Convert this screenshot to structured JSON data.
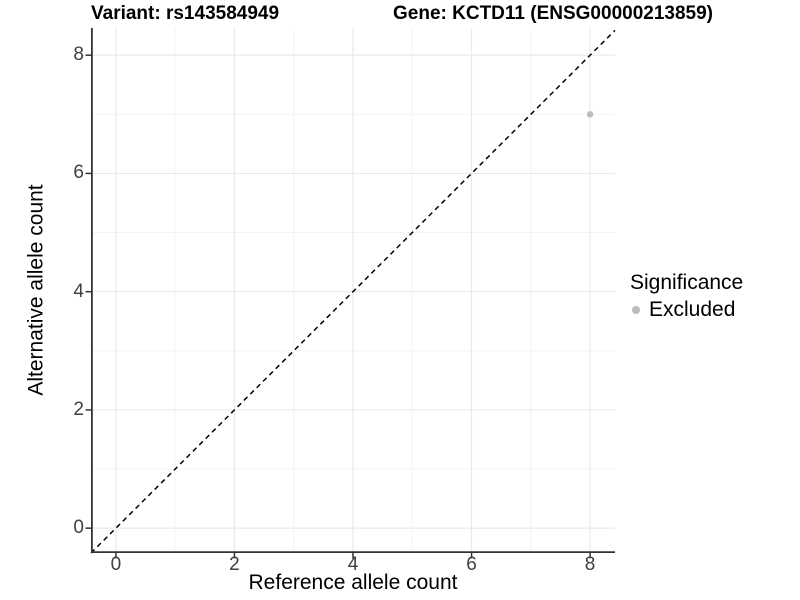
{
  "title": {
    "variant_label": "Variant: rs143584949",
    "gene_label": "Gene: KCTD11 (ENSG00000213859)"
  },
  "axes": {
    "x_label": "Reference allele count",
    "y_label": "Alternative allele count"
  },
  "legend": {
    "title": "Significance",
    "items": [
      {
        "label": "Excluded",
        "color": "#bcbcbc"
      }
    ]
  },
  "chart_data": {
    "type": "scatter",
    "title": "Variant: rs143584949 | Gene: KCTD11 (ENSG00000213859)",
    "xlabel": "Reference allele count",
    "ylabel": "Alternative allele count",
    "xlim": [
      -0.42,
      8.42
    ],
    "ylim": [
      -0.42,
      8.46
    ],
    "x_major_ticks": [
      0,
      2,
      4,
      6,
      8
    ],
    "y_major_ticks": [
      0,
      2,
      4,
      6,
      8
    ],
    "x_minor_ticks": [
      1,
      3,
      5,
      7
    ],
    "y_minor_ticks": [
      1,
      3,
      5,
      7
    ],
    "grid": "major+minor",
    "legend_position": "right",
    "series": [
      {
        "name": "Excluded",
        "color": "#bcbcbc",
        "point_radius": 3.2,
        "points": [
          [
            8,
            7
          ]
        ]
      }
    ],
    "reference_line": {
      "kind": "identity",
      "equation": "y = x",
      "style": "dashed",
      "color": "#000000"
    }
  },
  "colors": {
    "grid_major": "#e9e9e9",
    "grid_minor": "#f4f4f4",
    "axis_line": "#333333",
    "tick_text": "#404040"
  }
}
